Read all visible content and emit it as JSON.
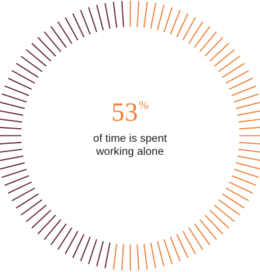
{
  "chart_data": {
    "type": "pie",
    "variant": "radial-tick-donut",
    "value_percent": 53,
    "value_label": "53",
    "unit_label": "%",
    "caption_lines": [
      "of time is spent",
      "working alone"
    ],
    "series": [
      {
        "name": "",
        "value": 53,
        "color": "#f07b32"
      },
      {
        "name": "",
        "value": 47,
        "color": "#5e1f28"
      }
    ],
    "tick_count": 100,
    "start": "top",
    "direction": "clockwise"
  }
}
